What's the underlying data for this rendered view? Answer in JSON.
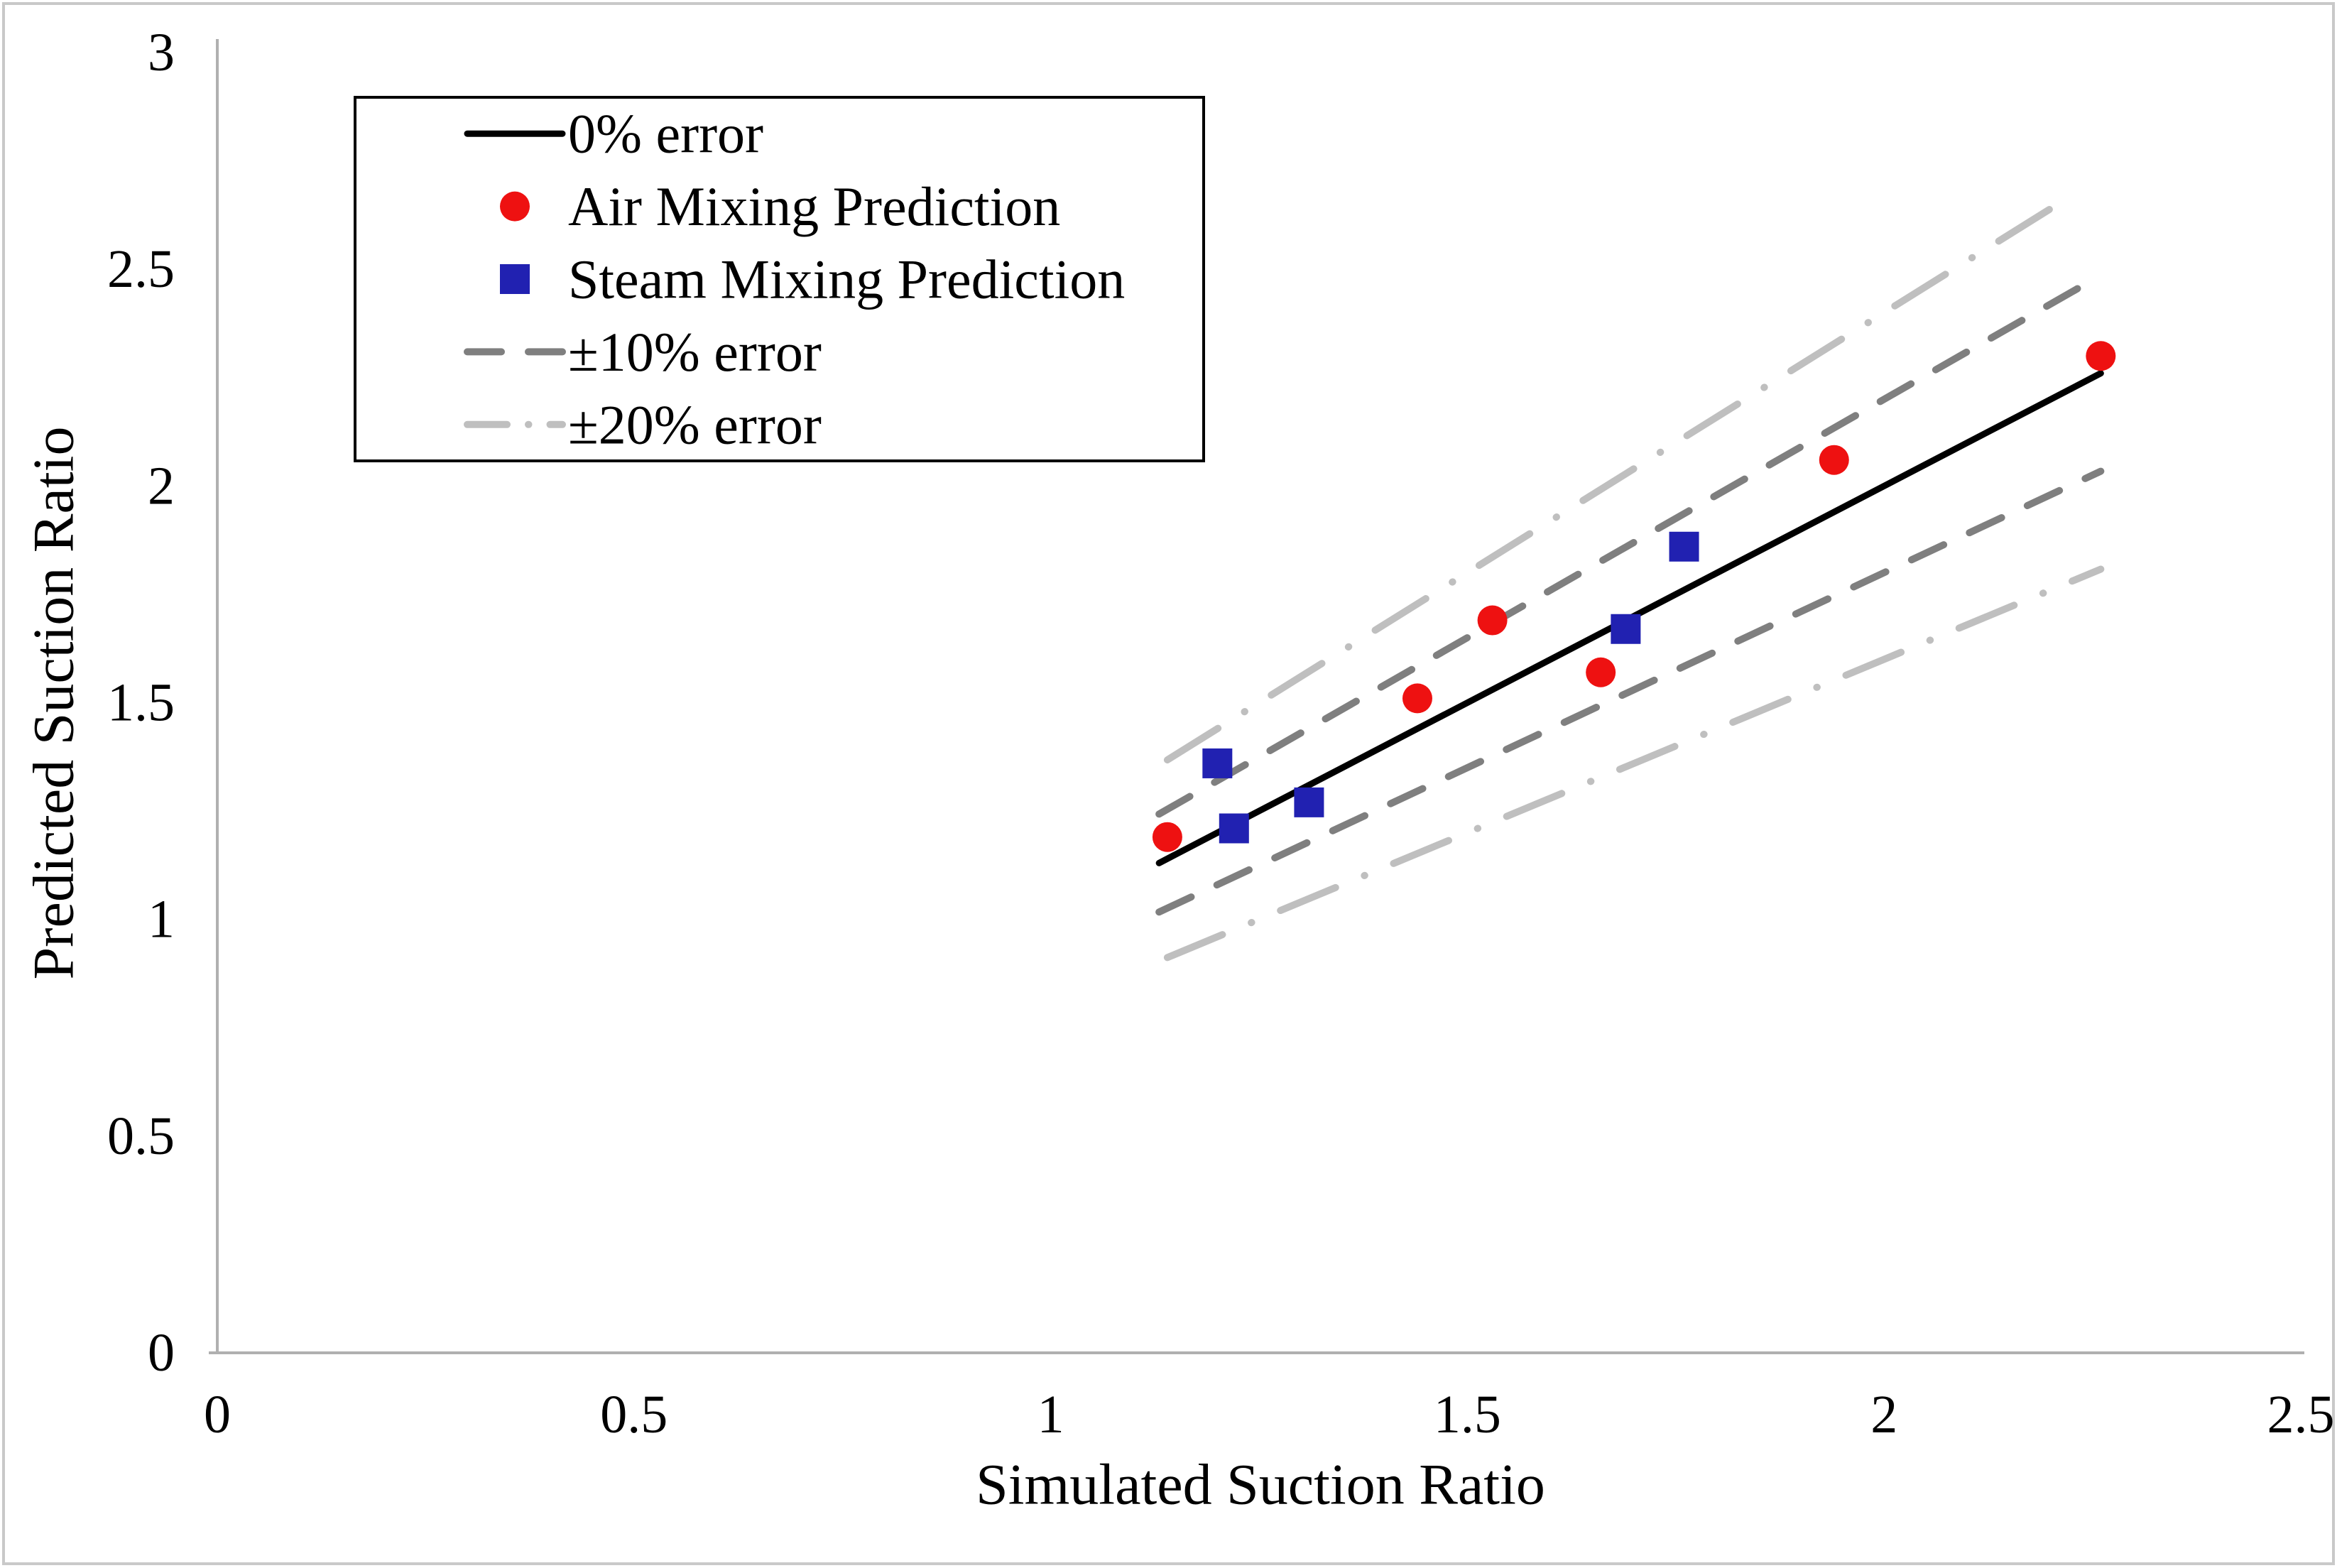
{
  "figure": {
    "background_color": "#ffffff",
    "border_color": "#c9c9c9",
    "axis_line_color": "#b0b0b0",
    "text_color": "#000000"
  },
  "chart_data": {
    "type": "scatter",
    "title": "",
    "xlabel": "Simulated Suction Ratio",
    "ylabel": "Predicted Suction Ratio",
    "xlim": [
      0,
      2.5
    ],
    "ylim": [
      0,
      3
    ],
    "x_ticks": [
      0,
      0.5,
      1,
      1.5,
      2,
      2.5
    ],
    "x_tick_labels": [
      "0",
      "0.5",
      "1",
      "1.5",
      "2",
      "2.5"
    ],
    "y_ticks": [
      0,
      0.5,
      1,
      1.5,
      2,
      2.5,
      3
    ],
    "y_tick_labels": [
      "0",
      "0.5",
      "1",
      "1.5",
      "2",
      "2.5",
      "3"
    ],
    "grid": false,
    "legend_position": "top-left",
    "series": [
      {
        "name": "Air Mixing Prediction",
        "marker": "circle",
        "color": "#ee1111",
        "points": [
          [
            1.14,
            1.19
          ],
          [
            1.44,
            1.51
          ],
          [
            1.53,
            1.69
          ],
          [
            1.66,
            1.57
          ],
          [
            1.94,
            2.06
          ],
          [
            2.26,
            2.3
          ]
        ]
      },
      {
        "name": "Steam Mixing Prediction",
        "marker": "square",
        "color": "#2121b1",
        "points": [
          [
            1.2,
            1.36
          ],
          [
            1.22,
            1.21
          ],
          [
            1.31,
            1.27
          ],
          [
            1.69,
            1.67
          ],
          [
            1.76,
            1.86
          ]
        ]
      }
    ],
    "reference_lines": [
      {
        "name": "0% error",
        "slope": 1.0,
        "x_range": [
          1.13,
          2.26
        ],
        "style": "solid",
        "color": "#000000"
      },
      {
        "name": "+10% error",
        "slope": 1.1,
        "x_range": [
          1.13,
          2.26
        ],
        "style": "dashed",
        "color": "#7f7f7f"
      },
      {
        "name": "-10% error",
        "slope": 0.9,
        "x_range": [
          1.13,
          2.26
        ],
        "style": "dashed",
        "color": "#7f7f7f"
      },
      {
        "name": "+20% error",
        "slope": 1.2,
        "x_range": [
          1.14,
          2.21
        ],
        "style": "dashdot",
        "color": "#bfbfbf"
      },
      {
        "name": "-20% error",
        "slope": 0.8,
        "x_range": [
          1.14,
          2.26
        ],
        "style": "dashdot",
        "color": "#bfbfbf"
      }
    ],
    "legend": {
      "items": [
        {
          "label": "0% error",
          "swatch": "line-solid",
          "color": "#000000"
        },
        {
          "label": "Air Mixing Prediction",
          "swatch": "circle",
          "color": "#ee1111"
        },
        {
          "label": "Steam Mixing Prediction",
          "swatch": "square",
          "color": "#2121b1"
        },
        {
          "label": "±10% error",
          "swatch": "line-dashed",
          "color": "#7f7f7f"
        },
        {
          "label": "±20% error",
          "swatch": "line-dashdot",
          "color": "#bfbfbf"
        }
      ]
    }
  }
}
